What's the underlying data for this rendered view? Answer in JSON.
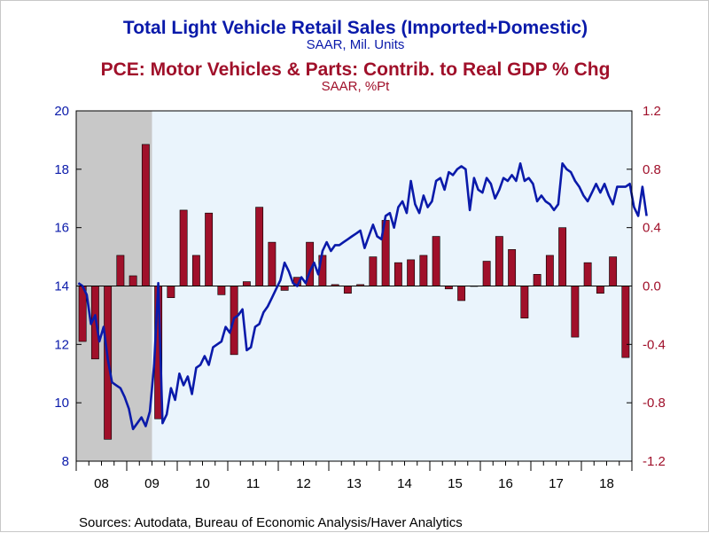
{
  "chart_data": {
    "type": "line+bar",
    "titles": [
      {
        "text": "Total Light Vehicle Retail Sales (Imported+Domestic)",
        "color": "#0a1aaa"
      },
      {
        "text": "SAAR, Mil. Units",
        "color": "#0a1aaa"
      },
      {
        "text": "PCE: Motor Vehicles & Parts: Contrib. to Real GDP % Chg",
        "color": "#a0102a"
      },
      {
        "text": "SAAR, %Pt",
        "color": "#a0102a"
      }
    ],
    "source": "Sources:  Autodata, Bureau of Economic Analysis/Haver Analytics",
    "x_axis": {
      "labels": [
        "08",
        "09",
        "10",
        "11",
        "12",
        "13",
        "14",
        "15",
        "16",
        "17",
        "18"
      ],
      "range": [
        "2008-01",
        "2018-12"
      ]
    },
    "left_axis": {
      "range": [
        8,
        20
      ],
      "ticks": [
        "20",
        "18",
        "16",
        "14",
        "12",
        "10",
        "8"
      ],
      "color": "#0a1aaa"
    },
    "right_axis": {
      "range": [
        -1.2,
        1.2
      ],
      "ticks": [
        "1.2",
        "0.8",
        "0.4",
        "0.0",
        "-0.4",
        "-0.8",
        "-1.2"
      ],
      "color": "#a0102a"
    },
    "recession_shading": {
      "start": "2008-01",
      "end": "2009-06",
      "color": "#c8c8c8"
    },
    "plot_background": "#eaf4fc",
    "series": [
      {
        "name": "Total Light Vehicle Retail Sales (Imported+Domestic)",
        "type": "line",
        "axis": "left",
        "color": "#0a1aaa",
        "frequency": "monthly",
        "start": "2008-01",
        "values": [
          14.1,
          14.0,
          13.7,
          12.7,
          13.0,
          12.1,
          12.6,
          11.5,
          10.7,
          10.6,
          10.5,
          10.2,
          9.8,
          9.1,
          9.3,
          9.5,
          9.2,
          9.7,
          11.3,
          14.1,
          9.3,
          9.6,
          10.5,
          10.1,
          11.0,
          10.6,
          10.9,
          10.3,
          11.2,
          11.3,
          11.6,
          11.3,
          11.9,
          12.0,
          12.1,
          12.6,
          12.4,
          12.9,
          13.0,
          13.2,
          11.8,
          11.9,
          12.6,
          12.7,
          13.1,
          13.3,
          13.6,
          13.9,
          14.2,
          14.8,
          14.5,
          14.1,
          14.0,
          14.3,
          14.1,
          14.5,
          14.8,
          14.4,
          15.2,
          15.5,
          15.2,
          15.4,
          15.4,
          15.5,
          15.6,
          15.7,
          15.8,
          15.9,
          15.3,
          15.7,
          16.1,
          15.7,
          15.6,
          16.4,
          16.5,
          16.0,
          16.7,
          16.9,
          16.5,
          17.6,
          16.8,
          16.5,
          17.1,
          16.7,
          16.9,
          17.6,
          17.7,
          17.3,
          17.9,
          17.8,
          18.0,
          18.1,
          18.0,
          16.6,
          17.7,
          17.3,
          17.2,
          17.7,
          17.5,
          17.0,
          17.3,
          17.7,
          17.6,
          17.8,
          17.6,
          18.2,
          17.6,
          17.7,
          17.5,
          16.9,
          17.1,
          16.9,
          16.8,
          16.6,
          16.8,
          18.2,
          18.0,
          17.9,
          17.6,
          17.4,
          17.1,
          16.9,
          17.2,
          17.5,
          17.2,
          17.5,
          17.1,
          16.8,
          17.4,
          17.4,
          17.4,
          17.5,
          16.7,
          16.4,
          17.4,
          16.4
        ]
      },
      {
        "name": "PCE: Motor Vehicles & Parts: Contrib. to Real GDP % Chg",
        "type": "bar",
        "axis": "right",
        "color": "#a0102a",
        "frequency": "quarterly",
        "start": "2008-Q1",
        "values": [
          -0.38,
          -0.5,
          -1.05,
          0.21,
          0.07,
          0.97,
          -0.91,
          -0.08,
          0.52,
          0.21,
          0.5,
          -0.06,
          -0.47,
          0.03,
          0.54,
          0.3,
          -0.03,
          0.06,
          0.3,
          0.21,
          0.01,
          -0.05,
          0.01,
          0.2,
          0.45,
          0.16,
          0.18,
          0.21,
          0.34,
          -0.02,
          -0.1,
          0.0,
          0.17,
          0.34,
          0.25,
          -0.22,
          0.08,
          0.21,
          0.4,
          -0.35,
          0.16,
          -0.05,
          0.2,
          -0.49
        ]
      }
    ]
  }
}
